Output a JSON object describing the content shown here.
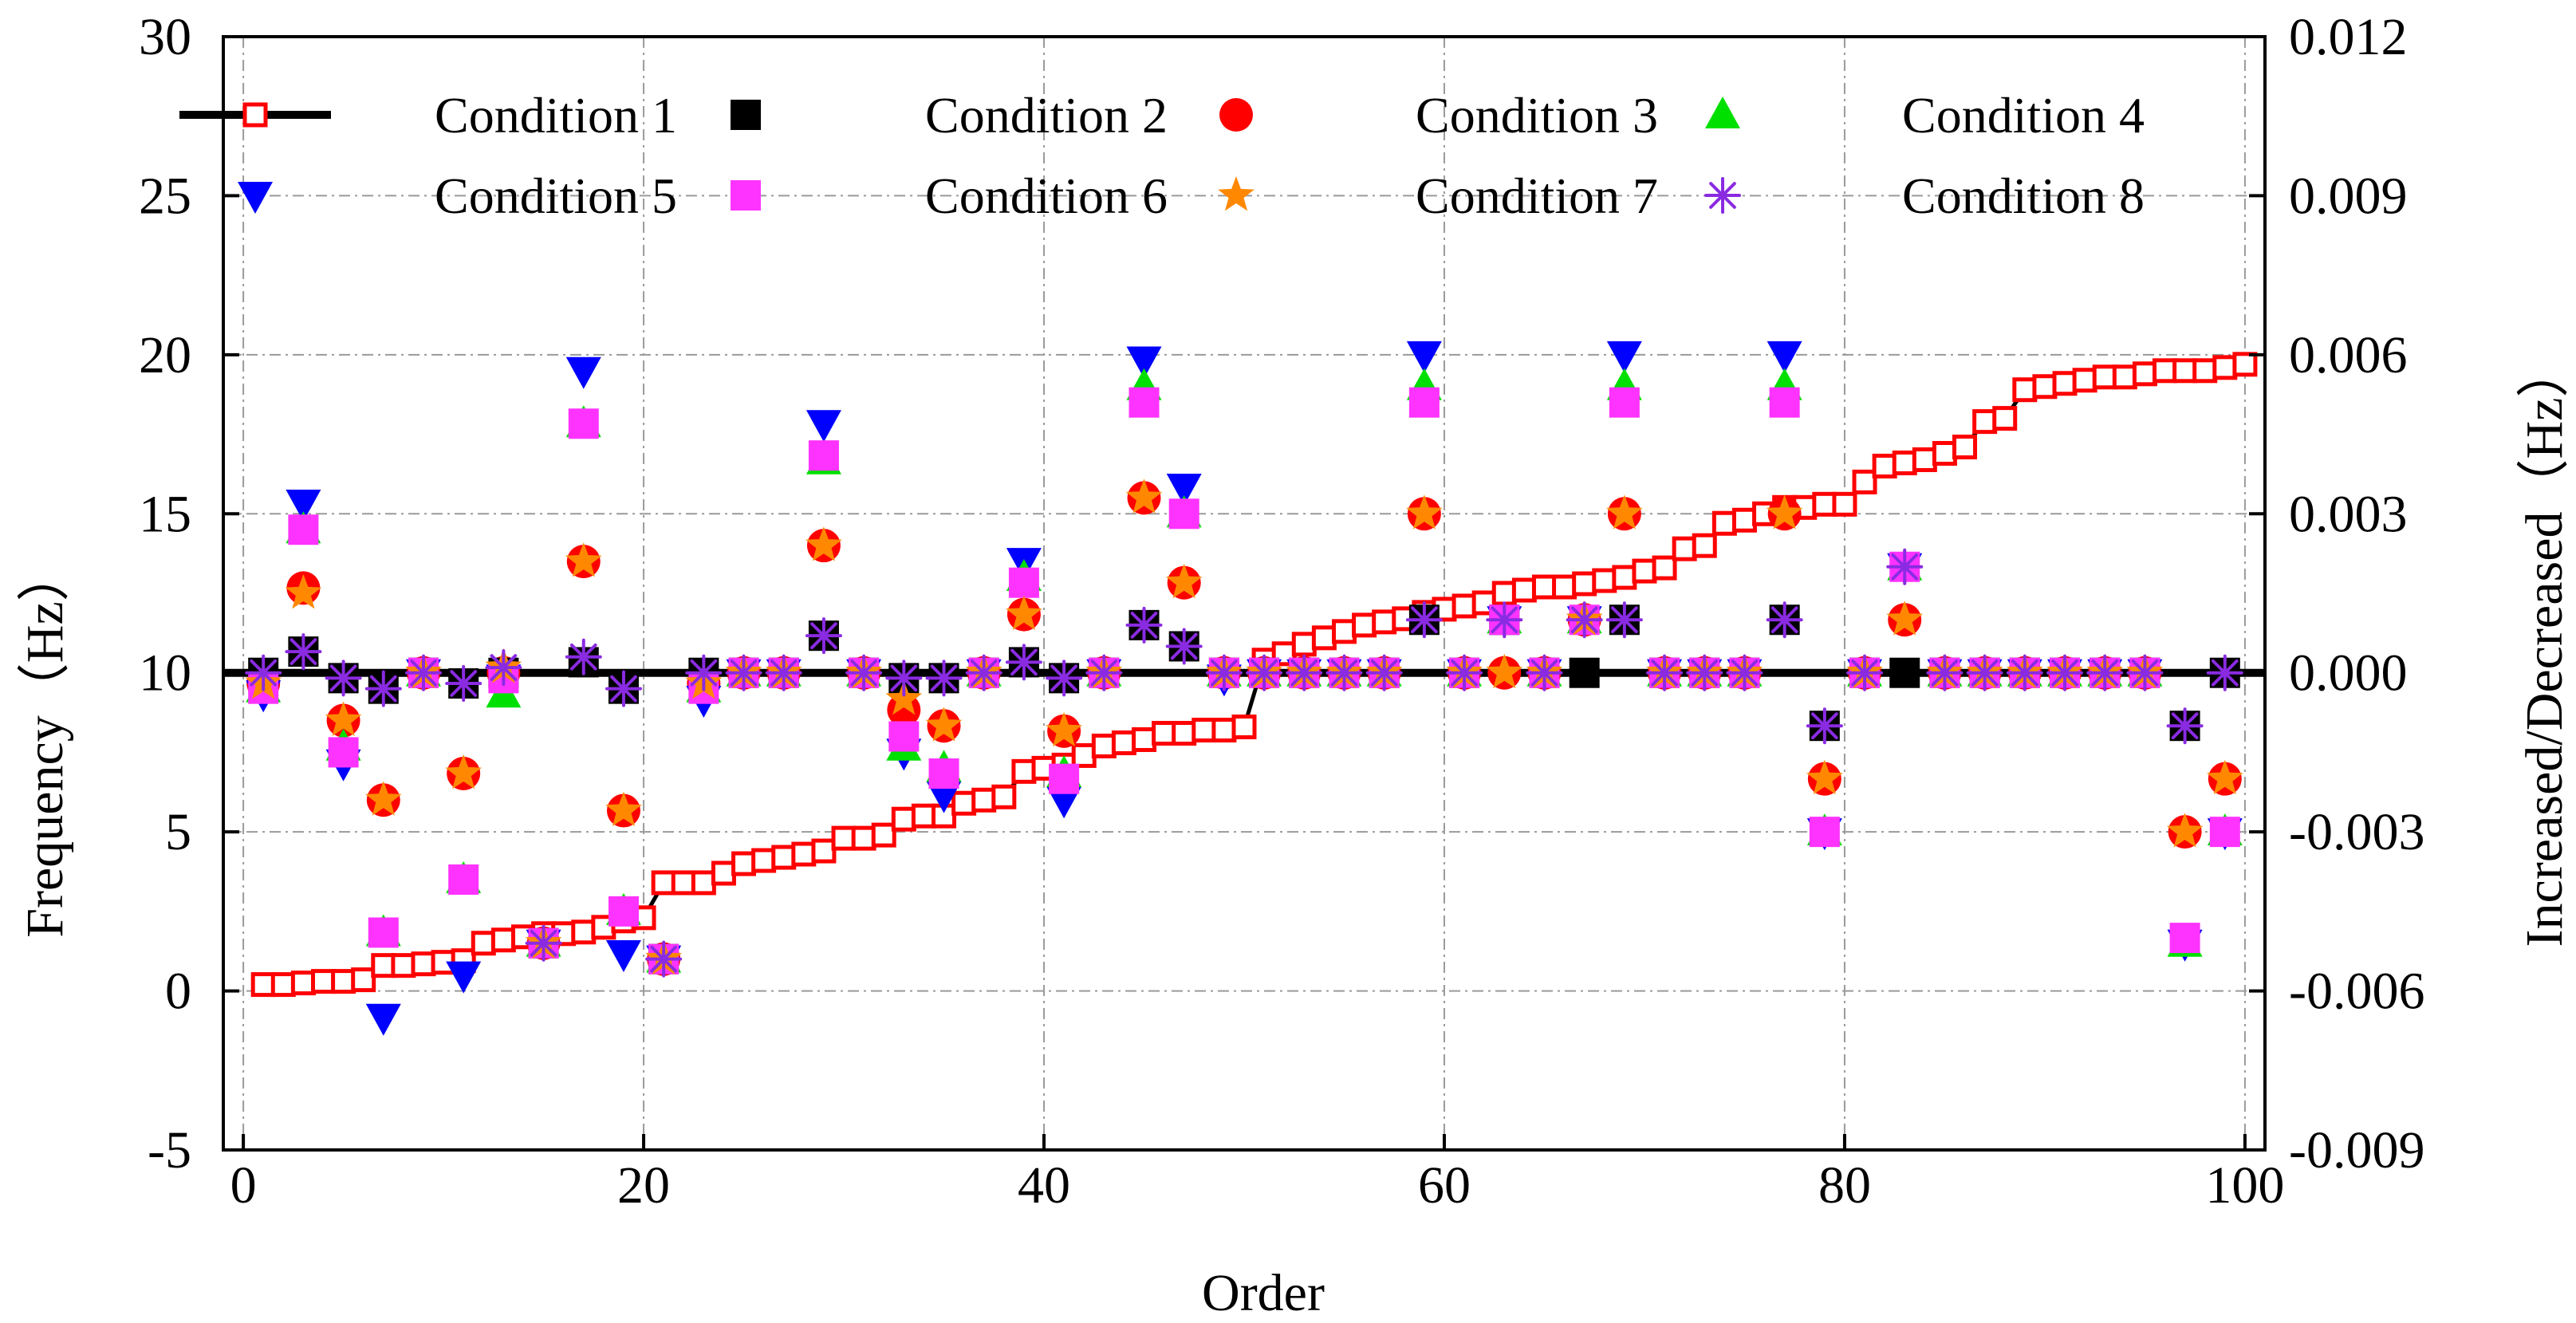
{
  "chart_data": {
    "type": "scatter",
    "xlabel": "Order",
    "ylabel": "Frequency（Hz）",
    "y2label": "Increased/Decreased（Hz）",
    "xlim": [
      -1,
      101
    ],
    "ylim": [
      -5,
      30
    ],
    "y2lim": [
      -0.009,
      0.012
    ],
    "xticks": [
      0,
      20,
      40,
      60,
      80,
      100
    ],
    "yticks": [
      -5,
      0,
      5,
      10,
      15,
      20,
      25,
      30
    ],
    "y2ticks": [
      -0.009,
      -0.006,
      -0.003,
      0,
      0.003,
      0.006,
      0.009,
      0.012
    ],
    "xtick_labels": [
      "0",
      "20",
      "40",
      "60",
      "80",
      "100"
    ],
    "ytick_labels": [
      "-5",
      "0",
      "5",
      "10",
      "15",
      "20",
      "25",
      "30"
    ],
    "y2tick_labels": [
      "-0.009",
      "-0.006",
      "-0.003",
      "0.000",
      "0.003",
      "0.006",
      "0.009",
      "0.012"
    ],
    "grid": true,
    "zero_reference": 0,
    "legend": {
      "position": "top",
      "entries": [
        "Condition 1",
        "Condition 2",
        "Condition 3",
        "Condition 4",
        "Condition 5",
        "Condition 6",
        "Condition 7",
        "Condition 8"
      ]
    },
    "frequency": {
      "name": "Condition 1",
      "axis": "left",
      "color": "#ff0000",
      "line_color": "#000000",
      "x": [
        1,
        2,
        3,
        4,
        5,
        6,
        7,
        8,
        9,
        10,
        11,
        12,
        13,
        14,
        15,
        16,
        17,
        18,
        19,
        20,
        21,
        22,
        23,
        24,
        25,
        26,
        27,
        28,
        29,
        30,
        31,
        32,
        33,
        34,
        35,
        36,
        37,
        38,
        39,
        40,
        41,
        42,
        43,
        44,
        45,
        46,
        47,
        48,
        49,
        50,
        51,
        52,
        53,
        54,
        55,
        56,
        57,
        58,
        59,
        60,
        61,
        62,
        63,
        64,
        65,
        66,
        67,
        68,
        69,
        70,
        71,
        72,
        73,
        74,
        75,
        76,
        77,
        78,
        79,
        80,
        81,
        82,
        83,
        84,
        85,
        86,
        87,
        88,
        89,
        90,
        91,
        92,
        93,
        94,
        95,
        96,
        97,
        98,
        99,
        100
      ],
      "values": [
        0.2,
        0.2,
        0.25,
        0.3,
        0.3,
        0.35,
        0.8,
        0.8,
        0.85,
        0.9,
        0.95,
        1.5,
        1.6,
        1.7,
        1.8,
        1.8,
        1.85,
        2.0,
        2.2,
        2.3,
        3.4,
        3.4,
        3.4,
        3.7,
        4.0,
        4.1,
        4.2,
        4.3,
        4.4,
        4.8,
        4.8,
        4.9,
        5.4,
        5.5,
        5.5,
        5.9,
        6.0,
        6.1,
        6.9,
        7.0,
        7.1,
        7.4,
        7.7,
        7.8,
        7.9,
        8.1,
        8.1,
        8.2,
        8.2,
        8.3,
        10.4,
        10.6,
        10.9,
        11.1,
        11.3,
        11.5,
        11.6,
        11.7,
        11.9,
        12.0,
        12.1,
        12.2,
        12.5,
        12.6,
        12.7,
        12.7,
        12.8,
        12.9,
        13.0,
        13.2,
        13.3,
        13.9,
        14.0,
        14.7,
        14.8,
        15.0,
        15.2,
        15.2,
        15.3,
        15.3,
        16.0,
        16.5,
        16.6,
        16.7,
        16.9,
        17.1,
        17.9,
        18.0,
        18.9,
        19.0,
        19.1,
        19.2,
        19.3,
        19.3,
        19.4,
        19.5,
        19.5,
        19.5,
        19.6,
        19.7
      ]
    },
    "series": [
      {
        "name": "Condition 2",
        "color": "#000000",
        "marker": "square",
        "axis": "right",
        "x": [
          1,
          3,
          5,
          7,
          9,
          11,
          13,
          15,
          17,
          19,
          21,
          23,
          25,
          27,
          29,
          31,
          33,
          35,
          37,
          39,
          41,
          43,
          45,
          47,
          49,
          51,
          53,
          55,
          57,
          59,
          61,
          63,
          65,
          67,
          69,
          71,
          73,
          75,
          77,
          79,
          81,
          83,
          85,
          87,
          89,
          91,
          93,
          95,
          97,
          99
        ],
        "values": [
          0,
          0.0004,
          -0.0001,
          -0.0003,
          0,
          -0.0002,
          0,
          -0.0051,
          0.0002,
          -0.0003,
          -0.0054,
          0,
          0,
          0,
          0.0007,
          0,
          -0.0001,
          -0.0001,
          0,
          0.0002,
          -0.0001,
          0,
          0.0009,
          0.0005,
          0,
          0,
          0,
          0,
          0,
          0.001,
          0,
          0.001,
          0,
          0,
          0.001,
          0,
          0,
          0,
          0.001,
          -0.001,
          0,
          0,
          0,
          0,
          0,
          0,
          0,
          0,
          -0.001,
          0
        ]
      },
      {
        "name": "Condition 3",
        "color": "#ff0000",
        "marker": "circle",
        "axis": "right",
        "x": [
          1,
          3,
          5,
          7,
          9,
          11,
          13,
          15,
          17,
          19,
          21,
          23,
          25,
          27,
          29,
          31,
          33,
          35,
          37,
          39,
          41,
          43,
          45,
          47,
          49,
          51,
          53,
          55,
          57,
          59,
          61,
          63,
          65,
          67,
          69,
          71,
          73,
          75,
          77,
          79,
          81,
          83,
          85,
          87,
          89,
          91,
          93,
          95,
          97,
          99
        ],
        "values": [
          -0.0002,
          0.0016,
          -0.0009,
          -0.0024,
          0,
          -0.0019,
          0,
          -0.0051,
          0.0021,
          -0.0026,
          -0.0054,
          -0.0002,
          0,
          0,
          0.0024,
          0,
          -0.0007,
          -0.001,
          0,
          0.0011,
          -0.0011,
          0,
          0.0033,
          0.0017,
          0,
          0,
          0,
          0,
          0,
          0.003,
          0,
          0,
          0,
          0.001,
          0.003,
          0,
          0,
          0,
          0.003,
          -0.002,
          0,
          0.001,
          0,
          0,
          0,
          0,
          0,
          0,
          -0.003,
          -0.002
        ]
      },
      {
        "name": "Condition 4",
        "color": "#00e000",
        "marker": "triangle-up",
        "axis": "right",
        "x": [
          1,
          3,
          5,
          7,
          9,
          11,
          13,
          15,
          17,
          19,
          21,
          23,
          25,
          27,
          29,
          31,
          33,
          35,
          37,
          39,
          41,
          43,
          45,
          47,
          49,
          51,
          53,
          55,
          57,
          59,
          61,
          63,
          65,
          67,
          69,
          71,
          73,
          75,
          77,
          79,
          81,
          83,
          85,
          87,
          89,
          91,
          93,
          95,
          97,
          99
        ],
        "values": [
          -0.0003,
          0.0027,
          -0.0014,
          -0.0049,
          0,
          -0.0039,
          -0.0004,
          -0.0051,
          0.0047,
          -0.0045,
          -0.0054,
          -0.0003,
          0,
          0,
          0.004,
          0,
          -0.0014,
          -0.0018,
          0,
          0.0018,
          -0.0019,
          0,
          0.0054,
          0.003,
          0,
          0,
          0,
          0,
          0,
          0.0054,
          0,
          0.001,
          0,
          0.001,
          0.0054,
          0,
          0,
          0,
          0.0054,
          -0.003,
          0,
          0.002,
          0,
          0,
          0,
          0,
          0,
          0,
          -0.0051,
          -0.003
        ]
      },
      {
        "name": "Condition 5",
        "color": "#0000ff",
        "marker": "triangle-down",
        "axis": "right",
        "x": [
          1,
          3,
          5,
          7,
          9,
          11,
          13,
          15,
          17,
          19,
          21,
          23,
          25,
          27,
          29,
          31,
          33,
          35,
          37,
          39,
          41,
          43,
          45,
          47,
          49,
          51,
          53,
          55,
          57,
          59,
          61,
          63,
          65,
          67,
          69,
          71,
          73,
          75,
          77,
          79,
          81,
          83,
          85,
          87,
          89,
          91,
          93,
          95,
          97,
          99
        ],
        "values": [
          -0.0004,
          0.0032,
          -0.0017,
          -0.0065,
          0,
          -0.0057,
          -0.0001,
          -0.0051,
          0.0057,
          -0.0053,
          -0.0054,
          -0.0005,
          0,
          0,
          0.0047,
          0,
          -0.0015,
          -0.0023,
          0,
          0.0021,
          -0.0024,
          0,
          0.0059,
          0.0035,
          -0.0001,
          0,
          0,
          0,
          0,
          0.006,
          0,
          0.001,
          0,
          0.001,
          0.006,
          0,
          0,
          0,
          0.006,
          -0.003,
          0,
          0.002,
          0,
          0,
          0,
          0,
          0,
          0,
          -0.0051,
          -0.003
        ]
      },
      {
        "name": "Condition 6",
        "color": "#ff33ff",
        "marker": "square",
        "axis": "right",
        "x": [
          1,
          3,
          5,
          7,
          9,
          11,
          13,
          15,
          17,
          19,
          21,
          23,
          25,
          27,
          29,
          31,
          33,
          35,
          37,
          39,
          41,
          43,
          45,
          47,
          49,
          51,
          53,
          55,
          57,
          59,
          61,
          63,
          65,
          67,
          69,
          71,
          73,
          75,
          77,
          79,
          81,
          83,
          85,
          87,
          89,
          91,
          93,
          95,
          97,
          99
        ],
        "values": [
          -0.0003,
          0.0027,
          -0.0015,
          -0.0049,
          0,
          -0.0039,
          -0.0001,
          -0.0051,
          0.0047,
          -0.0045,
          -0.0054,
          -0.0003,
          0,
          0,
          0.0041,
          0,
          -0.0012,
          -0.0019,
          0,
          0.0017,
          -0.002,
          0,
          0.0051,
          0.003,
          0,
          0,
          0,
          0,
          0,
          0.0051,
          0,
          0.001,
          0,
          0.001,
          0.0051,
          0,
          0,
          0,
          0.0051,
          -0.003,
          0,
          0.002,
          0,
          0,
          0,
          0,
          0,
          0,
          -0.005,
          -0.003
        ]
      },
      {
        "name": "Condition 7",
        "color": "#ff8800",
        "marker": "star",
        "axis": "right",
        "x": [
          1,
          3,
          5,
          7,
          9,
          11,
          13,
          15,
          17,
          19,
          21,
          23,
          25,
          27,
          29,
          31,
          33,
          35,
          37,
          39,
          41,
          43,
          45,
          47,
          49,
          51,
          53,
          55,
          57,
          59,
          61,
          63,
          65,
          67,
          69,
          71,
          73,
          75,
          77,
          79,
          81,
          83,
          85,
          87,
          89,
          91,
          93,
          95,
          97,
          99
        ],
        "values": [
          -0.0002,
          0.0015,
          -0.0009,
          -0.0024,
          0,
          -0.0019,
          0.0001,
          -0.0051,
          0.0021,
          -0.0026,
          -0.0054,
          -0.0002,
          0,
          0,
          0.0024,
          0,
          -0.0005,
          -0.001,
          0,
          0.0011,
          -0.0011,
          0,
          0.0033,
          0.0017,
          0,
          0,
          0,
          0,
          0,
          0.003,
          0,
          0,
          0,
          0.001,
          0.003,
          0,
          0,
          0,
          0.003,
          -0.002,
          0,
          0.001,
          0,
          0,
          0,
          0,
          0,
          0,
          -0.003,
          -0.002
        ]
      },
      {
        "name": "Condition 8",
        "color": "#8a2be2",
        "marker": "asterisk",
        "axis": "right",
        "x": [
          1,
          3,
          5,
          7,
          9,
          11,
          13,
          15,
          17,
          19,
          21,
          23,
          25,
          27,
          29,
          31,
          33,
          35,
          37,
          39,
          41,
          43,
          45,
          47,
          49,
          51,
          53,
          55,
          57,
          59,
          61,
          63,
          65,
          67,
          69,
          71,
          73,
          75,
          77,
          79,
          81,
          83,
          85,
          87,
          89,
          91,
          93,
          95,
          97,
          99
        ],
        "values": [
          0,
          0.0004,
          -0.0001,
          -0.0003,
          0,
          -0.0002,
          0.0001,
          -0.0051,
          0.0003,
          -0.0003,
          -0.0054,
          0,
          0,
          0,
          0.0007,
          0,
          -0.0001,
          -0.0001,
          0,
          0.0002,
          -0.0001,
          0,
          0.0009,
          0.0005,
          0,
          0,
          0,
          0,
          0,
          0.001,
          0,
          0.001,
          0,
          0.001,
          0.001,
          0,
          0,
          0,
          0.001,
          -0.001,
          0,
          0.002,
          0,
          0,
          0,
          0,
          0,
          0,
          -0.001,
          0
        ]
      }
    ]
  }
}
